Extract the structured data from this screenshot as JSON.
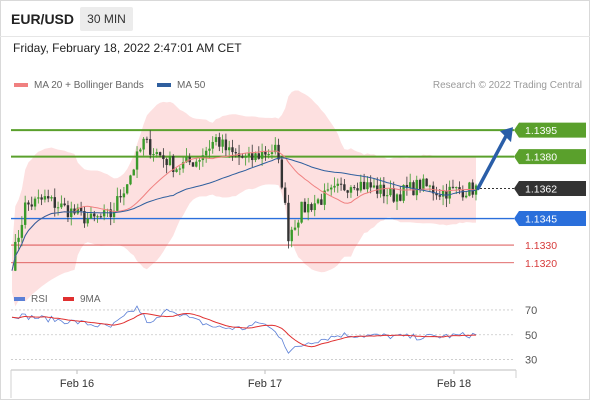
{
  "header": {
    "symbol": "EUR/USD",
    "timeframe": "30 MIN"
  },
  "timestamp": "Friday, February 18, 2022 2:47:01 AM CET",
  "legend": [
    {
      "label": "MA 20 + Bollinger Bands",
      "color": "#f08080"
    },
    {
      "label": "MA 50",
      "color": "#2f5f9e"
    }
  ],
  "credit": "Research © 2022 Trading Central",
  "colors": {
    "resistance": "#5aa02c",
    "support": "#2a6fdb",
    "minor_support": "#d73b3b",
    "current": "#333333",
    "bollinger_fill": "#fde0e0",
    "arrow": "#2a5ea8"
  },
  "chart_data": [
    {
      "type": "candlestick",
      "ylim": [
        1.1308,
        1.1412
      ],
      "x_labels": [
        "Feb 16",
        "Feb 17",
        "Feb 18"
      ],
      "price_levels": [
        {
          "label": "1.1395",
          "value": 1.1395,
          "kind": "resistance"
        },
        {
          "label": "1.1380",
          "value": 1.138,
          "kind": "resistance"
        },
        {
          "label": "1.1362",
          "value": 1.1362,
          "kind": "current"
        },
        {
          "label": "1.1345",
          "value": 1.1345,
          "kind": "support"
        },
        {
          "label": "1.1330",
          "value": 1.133,
          "kind": "minor_support"
        },
        {
          "label": "1.1320",
          "value": 1.132,
          "kind": "minor_support"
        }
      ],
      "forecast": {
        "from": 1.1362,
        "to": 1.1395
      },
      "series": [
        {
          "name": "MA 20 + Bollinger Bands"
        },
        {
          "name": "MA 50"
        }
      ]
    },
    {
      "type": "line",
      "legend": [
        {
          "label": "RSI",
          "color": "#5b7fd6"
        },
        {
          "label": "9MA",
          "color": "#e03030"
        }
      ],
      "ylim": [
        20,
        78
      ],
      "y_ticks": [
        "70",
        "50",
        "30"
      ],
      "y_tick_values": [
        70,
        50,
        30
      ]
    }
  ]
}
